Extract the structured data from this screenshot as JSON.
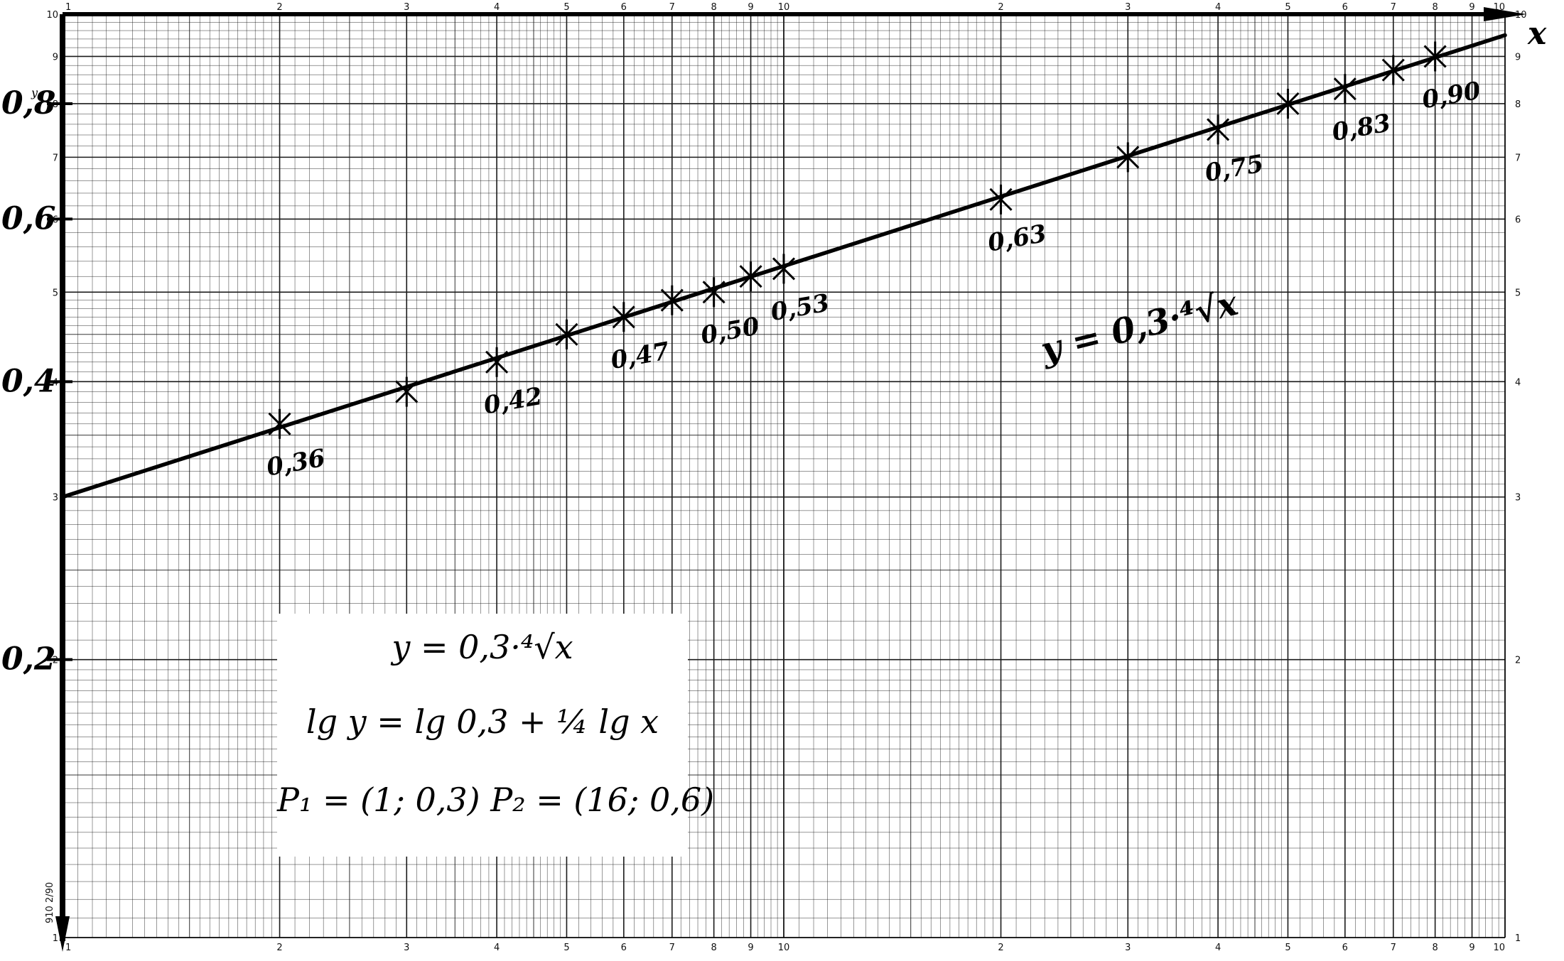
{
  "chart_data": {
    "type": "line",
    "xscale": "log",
    "yscale": "log",
    "x_grid_decades": [
      1,
      10,
      100
    ],
    "y_grid_decade": [
      1,
      10
    ],
    "xlim": [
      1,
      100
    ],
    "ylim": [
      0.1,
      1.0
    ],
    "grid": true,
    "x_tick_labels": [
      "1",
      "2",
      "3",
      "4",
      "5",
      "6",
      "7",
      "8",
      "9",
      "10",
      "2",
      "3",
      "4",
      "5",
      "6",
      "7",
      "8",
      "9",
      "10"
    ],
    "y_tick_labels": [
      "1",
      "2",
      "3",
      "4",
      "5",
      "6",
      "7",
      "8",
      "9",
      "10"
    ],
    "y_axis_marks": [
      "0,2",
      "0,4",
      "0,6",
      "0,8"
    ],
    "y_axis_mark_values": [
      0.2,
      0.4,
      0.6,
      0.8
    ],
    "xlabel": "x",
    "ylabel": "y",
    "line": {
      "x": [
        1,
        100
      ],
      "y": [
        0.3,
        0.949
      ]
    },
    "points": [
      {
        "x": 2,
        "y": 0.36,
        "label": "0,36"
      },
      {
        "x": 3,
        "y": 0.39,
        "label": ""
      },
      {
        "x": 4,
        "y": 0.42,
        "label": "0,42"
      },
      {
        "x": 5,
        "y": 0.45,
        "label": ""
      },
      {
        "x": 6,
        "y": 0.47,
        "label": "0,47"
      },
      {
        "x": 7,
        "y": 0.49,
        "label": ""
      },
      {
        "x": 8,
        "y": 0.5,
        "label": "0,50"
      },
      {
        "x": 9,
        "y": 0.52,
        "label": ""
      },
      {
        "x": 10,
        "y": 0.53,
        "label": "0,53"
      },
      {
        "x": 20,
        "y": 0.63,
        "label": "0,63"
      },
      {
        "x": 30,
        "y": 0.7,
        "label": ""
      },
      {
        "x": 40,
        "y": 0.75,
        "label": "0,75"
      },
      {
        "x": 50,
        "y": 0.8,
        "label": ""
      },
      {
        "x": 60,
        "y": 0.83,
        "label": "0,83"
      },
      {
        "x": 70,
        "y": 0.87,
        "label": ""
      },
      {
        "x": 80,
        "y": 0.9,
        "label": "0,90"
      }
    ],
    "curve_annotation": "y = 0,3·⁴√x"
  },
  "formula_box": {
    "line1": "y = 0,3·⁴√x",
    "line2": "lg y = lg 0,3 + ¼ lg x",
    "line3": "P₁ = (1; 0,3)   P₂ = (16; 0,6)"
  },
  "corner_code": "910 2/90",
  "colors": {
    "grid": "#1a1a1a",
    "ink": "#000000",
    "paper": "#ffffff"
  }
}
